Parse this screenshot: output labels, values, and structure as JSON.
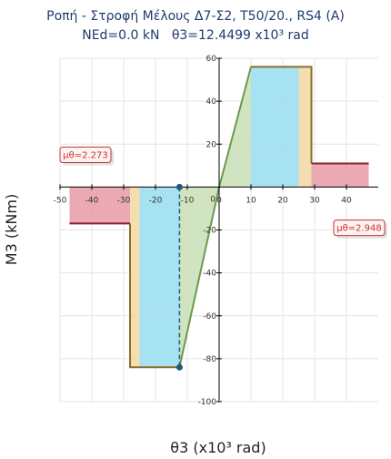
{
  "chart_data": {
    "type": "line",
    "title": "Ροπή - Στροφή Μέλους Δ7-Σ2, T50/20., RS4 (A)",
    "subtitle": "NEd=0.0 kN   θ3=12.4499 x10³ rad",
    "xlabel": "θ3 (x10³ rad)",
    "ylabel": "M3 (kNm)",
    "xlim": [
      -50,
      50
    ],
    "ylim": [
      -100,
      60
    ],
    "xticks": [
      -50,
      -40,
      -30,
      -20,
      -10,
      0,
      10,
      20,
      30,
      40
    ],
    "yticks": [
      60,
      40,
      20,
      0,
      -20,
      -40,
      -60,
      -80,
      -100
    ],
    "grid": true,
    "positive_branch": {
      "points": [
        [
          0,
          0
        ],
        [
          10,
          56
        ],
        [
          29,
          56
        ],
        [
          29,
          11
        ],
        [
          47,
          11
        ]
      ],
      "elastic_end": 10,
      "io_end": 25,
      "ls_end": 29,
      "residual_end": 47
    },
    "negative_branch": {
      "points": [
        [
          0,
          0
        ],
        [
          -12.4499,
          -84
        ],
        [
          -28,
          -84
        ],
        [
          -28,
          -17
        ],
        [
          -47,
          -17
        ]
      ],
      "elastic_end": -12.4499,
      "io_end": -25,
      "ls_end": -28,
      "residual_end": -47
    },
    "current_point": {
      "x": -12.4499,
      "y_top": 0,
      "y_bottom": -84
    },
    "annotations": [
      {
        "text": "μθ=2.273",
        "x": -42,
        "y": 15
      },
      {
        "text": "μθ=2.948",
        "x": 44,
        "y": -19
      }
    ],
    "colors": {
      "curve": "#6a9a4c",
      "plateau": "#8c6d2c",
      "residual": "#8b2232",
      "elastic_fill": "#c9dfb7",
      "io_fill": "#9ddff1",
      "ls_fill": "#f3d9a6",
      "cp_fill": "#e89aa6",
      "current_line": "#1f5a7a",
      "annotation": "#c0392b"
    }
  }
}
